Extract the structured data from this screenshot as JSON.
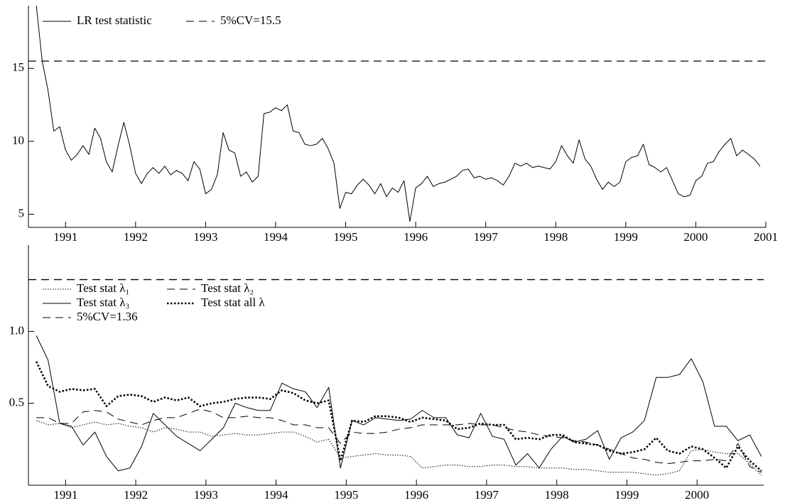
{
  "chart_data": [
    {
      "type": "line",
      "x": [
        1990.583,
        1990.667,
        1990.75,
        1990.833,
        1990.917,
        1991,
        1991.083,
        1991.167,
        1991.25,
        1991.333,
        1991.417,
        1991.5,
        1991.583,
        1991.667,
        1991.75,
        1991.833,
        1991.917,
        1992,
        1992.083,
        1992.167,
        1992.25,
        1992.333,
        1992.417,
        1992.5,
        1992.583,
        1992.667,
        1992.75,
        1992.833,
        1992.917,
        1993,
        1993.083,
        1993.167,
        1993.25,
        1993.333,
        1993.417,
        1993.5,
        1993.583,
        1993.667,
        1993.75,
        1993.833,
        1993.917,
        1994,
        1994.083,
        1994.167,
        1994.25,
        1994.333,
        1994.417,
        1994.5,
        1994.583,
        1994.667,
        1994.75,
        1994.833,
        1994.917,
        1995,
        1995.083,
        1995.167,
        1995.25,
        1995.333,
        1995.417,
        1995.5,
        1995.583,
        1995.667,
        1995.75,
        1995.833,
        1995.917,
        1996,
        1996.083,
        1996.167,
        1996.25,
        1996.333,
        1996.417,
        1996.5,
        1996.583,
        1996.667,
        1996.75,
        1996.833,
        1996.917,
        1997,
        1997.083,
        1997.167,
        1997.25,
        1997.333,
        1997.417,
        1997.5,
        1997.583,
        1997.667,
        1997.75,
        1997.833,
        1997.917,
        1998,
        1998.083,
        1998.167,
        1998.25,
        1998.333,
        1998.417,
        1998.5,
        1998.583,
        1998.667,
        1998.75,
        1998.833,
        1998.917,
        1999,
        1999.083,
        1999.167,
        1999.25,
        1999.333,
        1999.417,
        1999.5,
        1999.583,
        1999.667,
        1999.75,
        1999.833,
        1999.917,
        2000,
        2000.083,
        2000.167,
        2000.25,
        2000.333,
        2000.417,
        2000.5,
        2000.583,
        2000.667,
        2000.75,
        2000.833,
        2000.917
      ],
      "series": [
        {
          "name": "LR test statistic",
          "color": "#000000",
          "style": "solid",
          "values": [
            19.3,
            15.5,
            13.5,
            10.7,
            11.0,
            9.4,
            8.7,
            9.1,
            9.7,
            9.1,
            10.9,
            10.2,
            8.6,
            7.9,
            9.7,
            11.3,
            9.7,
            7.8,
            7.1,
            7.8,
            8.2,
            7.8,
            8.3,
            7.7,
            8.0,
            7.8,
            7.3,
            8.6,
            8.1,
            6.4,
            6.7,
            7.7,
            10.6,
            9.4,
            9.2,
            7.6,
            7.9,
            7.2,
            7.6,
            11.9,
            12.0,
            12.3,
            12.1,
            12.5,
            10.7,
            10.6,
            9.8,
            9.7,
            9.8,
            10.2,
            9.5,
            8.5,
            5.4,
            6.5,
            6.4,
            7.0,
            7.4,
            7.0,
            6.4,
            7.1,
            6.2,
            6.8,
            6.5,
            7.3,
            4.5,
            6.8,
            7.1,
            7.6,
            6.9,
            7.1,
            7.2,
            7.4,
            7.6,
            8.0,
            8.1,
            7.5,
            7.6,
            7.4,
            7.5,
            7.3,
            7.0,
            7.6,
            8.5,
            8.3,
            8.5,
            8.2,
            8.3,
            8.2,
            8.1,
            8.6,
            9.7,
            9.0,
            8.5,
            10.1,
            8.8,
            8.3,
            7.4,
            6.7,
            7.2,
            6.9,
            7.2,
            8.6,
            8.9,
            9.0,
            9.8,
            8.4,
            8.2,
            7.9,
            8.2,
            7.3,
            6.4,
            6.2,
            6.3,
            7.3,
            7.6,
            8.5,
            8.6,
            9.3,
            9.8,
            10.2,
            9.0,
            9.4,
            9.1,
            8.8,
            8.3
          ]
        }
      ],
      "hlines": [
        {
          "name": "5%CV=15.5",
          "value": 15.5,
          "color": "#000000",
          "style": "dashed"
        }
      ],
      "xlim": [
        1990.47,
        2001.0
      ],
      "xticks": [
        1991,
        1992,
        1993,
        1994,
        1995,
        1996,
        1997,
        1998,
        1999,
        2000,
        2001
      ],
      "ylim": [
        4.1,
        19.3
      ],
      "yticks": [
        5,
        10,
        15
      ],
      "legend": "upper left",
      "legend_columns": 2
    },
    {
      "type": "line",
      "x": [
        1990.583,
        1990.75,
        1990.917,
        1991.083,
        1991.25,
        1991.417,
        1991.583,
        1991.75,
        1991.917,
        1992.083,
        1992.25,
        1992.417,
        1992.583,
        1992.75,
        1992.917,
        1993.083,
        1993.25,
        1993.417,
        1993.583,
        1993.75,
        1993.917,
        1994.083,
        1994.25,
        1994.417,
        1994.583,
        1994.75,
        1994.917,
        1995.083,
        1995.25,
        1995.417,
        1995.583,
        1995.75,
        1995.917,
        1996.083,
        1996.25,
        1996.417,
        1996.583,
        1996.75,
        1996.917,
        1997.083,
        1997.25,
        1997.417,
        1997.583,
        1997.75,
        1997.917,
        1998.083,
        1998.25,
        1998.417,
        1998.583,
        1998.75,
        1998.917,
        1999.083,
        1999.25,
        1999.417,
        1999.583,
        1999.75,
        1999.917,
        2000.083,
        2000.25,
        2000.417,
        2000.583,
        2000.75,
        2000.917
      ],
      "series": [
        {
          "name": "Test stat λ₁",
          "color": "#000000",
          "style": "dotted",
          "values": [
            0.38,
            0.35,
            0.36,
            0.33,
            0.35,
            0.37,
            0.35,
            0.36,
            0.34,
            0.33,
            0.3,
            0.33,
            0.32,
            0.3,
            0.3,
            0.27,
            0.28,
            0.29,
            0.28,
            0.28,
            0.29,
            0.3,
            0.3,
            0.27,
            0.23,
            0.25,
            0.12,
            0.13,
            0.14,
            0.15,
            0.14,
            0.14,
            0.13,
            0.05,
            0.06,
            0.07,
            0.07,
            0.06,
            0.06,
            0.07,
            0.07,
            0.06,
            0.06,
            0.05,
            0.05,
            0.05,
            0.04,
            0.04,
            0.03,
            0.02,
            0.02,
            0.02,
            0.01,
            0.0,
            0.01,
            0.03,
            0.17,
            0.18,
            0.16,
            0.15,
            0.15,
            0.08,
            0.0
          ]
        },
        {
          "name": "Test stat λ₂",
          "color": "#000000",
          "style": "dashed",
          "values": [
            0.4,
            0.4,
            0.36,
            0.36,
            0.44,
            0.45,
            0.44,
            0.39,
            0.37,
            0.35,
            0.38,
            0.4,
            0.4,
            0.43,
            0.46,
            0.44,
            0.4,
            0.4,
            0.41,
            0.4,
            0.4,
            0.38,
            0.35,
            0.35,
            0.33,
            0.33,
            0.22,
            0.3,
            0.29,
            0.29,
            0.3,
            0.32,
            0.33,
            0.35,
            0.35,
            0.35,
            0.35,
            0.36,
            0.35,
            0.35,
            0.33,
            0.31,
            0.3,
            0.28,
            0.27,
            0.26,
            0.24,
            0.23,
            0.21,
            0.18,
            0.15,
            0.12,
            0.11,
            0.09,
            0.08,
            0.09,
            0.1,
            0.1,
            0.11,
            0.1,
            0.22,
            0.06,
            0.02
          ]
        },
        {
          "name": "Test stat λ₃",
          "color": "#000000",
          "style": "solid",
          "values": [
            0.97,
            0.8,
            0.36,
            0.34,
            0.21,
            0.3,
            0.13,
            0.03,
            0.05,
            0.2,
            0.43,
            0.35,
            0.27,
            0.22,
            0.17,
            0.25,
            0.33,
            0.5,
            0.47,
            0.45,
            0.45,
            0.64,
            0.6,
            0.58,
            0.47,
            0.61,
            0.05,
            0.38,
            0.35,
            0.4,
            0.39,
            0.38,
            0.39,
            0.45,
            0.4,
            0.4,
            0.28,
            0.26,
            0.43,
            0.27,
            0.25,
            0.07,
            0.15,
            0.05,
            0.18,
            0.27,
            0.23,
            0.25,
            0.31,
            0.11,
            0.26,
            0.3,
            0.38,
            0.68,
            0.68,
            0.7,
            0.81,
            0.65,
            0.34,
            0.34,
            0.24,
            0.28,
            0.13
          ]
        },
        {
          "name": "Test stat all λ",
          "color": "#000000",
          "style": "thick-dotted",
          "values": [
            0.79,
            0.62,
            0.58,
            0.6,
            0.59,
            0.6,
            0.48,
            0.55,
            0.56,
            0.55,
            0.51,
            0.54,
            0.52,
            0.54,
            0.48,
            0.5,
            0.51,
            0.53,
            0.54,
            0.54,
            0.53,
            0.59,
            0.57,
            0.52,
            0.5,
            0.52,
            0.1,
            0.38,
            0.37,
            0.41,
            0.41,
            0.4,
            0.37,
            0.4,
            0.39,
            0.38,
            0.32,
            0.33,
            0.36,
            0.35,
            0.35,
            0.25,
            0.26,
            0.25,
            0.28,
            0.28,
            0.23,
            0.22,
            0.21,
            0.17,
            0.15,
            0.16,
            0.18,
            0.26,
            0.17,
            0.15,
            0.2,
            0.18,
            0.12,
            0.05,
            0.2,
            0.1,
            0.03
          ]
        }
      ],
      "hlines": [
        {
          "name": "5%CV=1.36",
          "value": 1.36,
          "color": "#000000",
          "style": "dashed"
        }
      ],
      "xlim": [
        1990.47,
        2000.95
      ],
      "xticks": [
        1991,
        1992,
        1993,
        1994,
        1995,
        1996,
        1997,
        1998,
        1999,
        2000
      ],
      "ylim": [
        -0.07,
        1.6
      ],
      "yticks": [
        0.5,
        {
          "value": 1,
          "label": "1.0"
        }
      ],
      "legend": "upper left",
      "legend_columns": 2
    }
  ]
}
